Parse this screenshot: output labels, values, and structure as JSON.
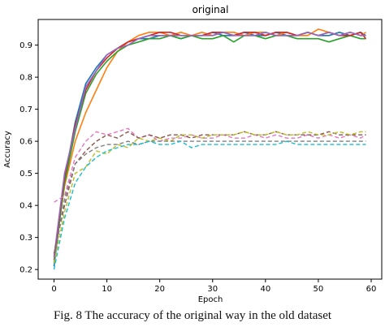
{
  "caption": "Fig. 8 The accuracy of the original way in the old dataset",
  "chart_data": {
    "type": "line",
    "title": "original",
    "xlabel": "Epoch",
    "ylabel": "Accuracy",
    "xlim": [
      -3,
      62
    ],
    "ylim": [
      0.17,
      0.98
    ],
    "xticks": [
      "0",
      "10",
      "20",
      "30",
      "40",
      "50",
      "60"
    ],
    "yticks": [
      "0.2",
      "0.3",
      "0.4",
      "0.5",
      "0.6",
      "0.7",
      "0.8",
      "0.9"
    ],
    "grid": false,
    "x": [
      0,
      2,
      4,
      6,
      8,
      10,
      12,
      14,
      16,
      18,
      20,
      22,
      24,
      26,
      28,
      30,
      32,
      34,
      36,
      38,
      40,
      42,
      44,
      46,
      48,
      50,
      52,
      54,
      56,
      58,
      59
    ],
    "series": [
      {
        "style": "solid",
        "color": "#1f77b4",
        "values": [
          0.21,
          0.48,
          0.66,
          0.78,
          0.83,
          0.87,
          0.89,
          0.91,
          0.92,
          0.92,
          0.93,
          0.93,
          0.92,
          0.93,
          0.93,
          0.94,
          0.93,
          0.93,
          0.94,
          0.93,
          0.93,
          0.94,
          0.93,
          0.93,
          0.94,
          0.93,
          0.93,
          0.94,
          0.93,
          0.94,
          0.93
        ]
      },
      {
        "style": "solid",
        "color": "#ff7f0e",
        "values": [
          0.24,
          0.46,
          0.6,
          0.69,
          0.76,
          0.83,
          0.88,
          0.91,
          0.93,
          0.94,
          0.94,
          0.93,
          0.94,
          0.93,
          0.94,
          0.93,
          0.94,
          0.94,
          0.93,
          0.94,
          0.94,
          0.93,
          0.94,
          0.93,
          0.93,
          0.95,
          0.94,
          0.93,
          0.94,
          0.93,
          0.94
        ]
      },
      {
        "style": "solid",
        "color": "#2ca02c",
        "values": [
          0.22,
          0.47,
          0.63,
          0.75,
          0.81,
          0.85,
          0.88,
          0.9,
          0.91,
          0.92,
          0.92,
          0.93,
          0.92,
          0.93,
          0.92,
          0.92,
          0.93,
          0.91,
          0.93,
          0.93,
          0.92,
          0.93,
          0.93,
          0.92,
          0.92,
          0.92,
          0.91,
          0.92,
          0.93,
          0.92,
          0.92
        ]
      },
      {
        "style": "solid",
        "color": "#d62728",
        "values": [
          0.23,
          0.49,
          0.65,
          0.76,
          0.82,
          0.86,
          0.89,
          0.91,
          0.92,
          0.93,
          0.94,
          0.94,
          0.93,
          0.93,
          0.93,
          0.94,
          0.94,
          0.93,
          0.94,
          0.94,
          0.93,
          0.94,
          0.94,
          0.93,
          0.94,
          0.93,
          0.94,
          0.93,
          0.93,
          0.94,
          0.92
        ]
      },
      {
        "style": "solid",
        "color": "#9467bd",
        "values": [
          0.24,
          0.5,
          0.64,
          0.77,
          0.82,
          0.87,
          0.89,
          0.9,
          0.92,
          0.93,
          0.93,
          0.93,
          0.93,
          0.93,
          0.93,
          0.93,
          0.94,
          0.93,
          0.93,
          0.93,
          0.94,
          0.93,
          0.93,
          0.93,
          0.94,
          0.93,
          0.94,
          0.93,
          0.94,
          0.93,
          0.93
        ]
      },
      {
        "style": "dashed",
        "color": "#e377c2",
        "values": [
          0.41,
          0.43,
          0.55,
          0.6,
          0.63,
          0.62,
          0.63,
          0.64,
          0.61,
          0.62,
          0.6,
          0.61,
          0.61,
          0.62,
          0.61,
          0.61,
          0.62,
          0.61,
          0.61,
          0.62,
          0.61,
          0.62,
          0.61,
          0.61,
          0.62,
          0.61,
          0.62,
          0.61,
          0.62,
          0.61,
          0.62
        ]
      },
      {
        "style": "dashed",
        "color": "#8c564b",
        "values": [
          0.25,
          0.4,
          0.53,
          0.57,
          0.6,
          0.62,
          0.61,
          0.63,
          0.61,
          0.62,
          0.61,
          0.62,
          0.62,
          0.61,
          0.62,
          0.62,
          0.62,
          0.62,
          0.63,
          0.62,
          0.62,
          0.63,
          0.62,
          0.62,
          0.62,
          0.62,
          0.63,
          0.62,
          0.62,
          0.62,
          0.62
        ]
      },
      {
        "style": "dashed",
        "color": "#bcbd22",
        "values": [
          0.22,
          0.38,
          0.5,
          0.52,
          0.57,
          0.56,
          0.59,
          0.58,
          0.61,
          0.6,
          0.61,
          0.6,
          0.62,
          0.62,
          0.61,
          0.62,
          0.62,
          0.62,
          0.63,
          0.62,
          0.62,
          0.63,
          0.62,
          0.62,
          0.63,
          0.62,
          0.62,
          0.63,
          0.62,
          0.63,
          0.63
        ]
      },
      {
        "style": "dashed",
        "color": "#7f7f7f",
        "values": [
          0.23,
          0.42,
          0.53,
          0.56,
          0.58,
          0.59,
          0.59,
          0.6,
          0.59,
          0.6,
          0.6,
          0.6,
          0.6,
          0.6,
          0.6,
          0.6,
          0.6,
          0.6,
          0.6,
          0.6,
          0.6,
          0.6,
          0.6,
          0.6,
          0.6,
          0.6,
          0.6,
          0.6,
          0.6,
          0.6,
          0.6
        ]
      },
      {
        "style": "dashed",
        "color": "#17becf",
        "values": [
          0.2,
          0.36,
          0.47,
          0.52,
          0.55,
          0.57,
          0.58,
          0.59,
          0.59,
          0.6,
          0.59,
          0.59,
          0.6,
          0.58,
          0.59,
          0.59,
          0.59,
          0.59,
          0.59,
          0.59,
          0.59,
          0.59,
          0.6,
          0.59,
          0.59,
          0.59,
          0.59,
          0.59,
          0.59,
          0.59,
          0.59
        ]
      }
    ]
  }
}
